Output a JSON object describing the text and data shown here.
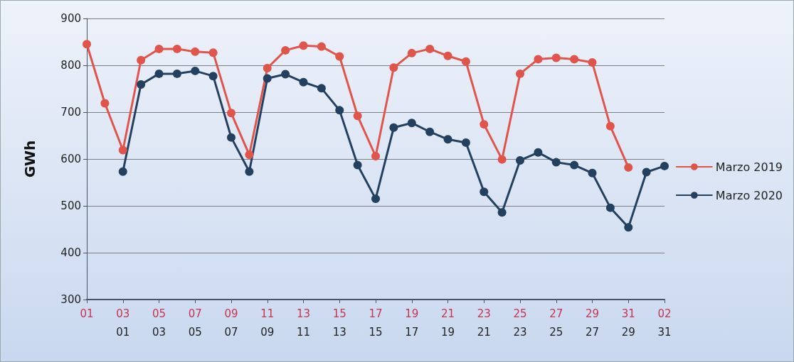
{
  "chart_data": {
    "type": "line",
    "ylabel": "GWh",
    "categories": [
      "01",
      null,
      "03",
      null,
      "05",
      null,
      "07",
      null,
      "09",
      null,
      "11",
      null,
      "13",
      null,
      "15",
      null,
      "17",
      null,
      "19",
      null,
      "21",
      null,
      "23",
      null,
      "25",
      null,
      "27",
      null,
      "29",
      null,
      "31",
      null,
      "02"
    ],
    "series": [
      {
        "name": "Marzo 2019",
        "color": "#e0554b",
        "values": [
          845,
          719,
          619,
          811,
          835,
          835,
          829,
          827,
          698,
          609,
          794,
          832,
          842,
          840,
          819,
          692,
          606,
          795,
          826,
          835,
          820,
          808,
          674,
          599,
          782,
          813,
          816,
          813,
          806,
          670,
          582,
          null,
          null
        ]
      },
      {
        "name": "Marzo 2020",
        "color": "#24405f",
        "values": [
          null,
          null,
          573,
          759,
          782,
          782,
          788,
          777,
          646,
          573,
          772,
          781,
          764,
          751,
          704,
          587,
          515,
          667,
          677,
          658,
          642,
          635,
          530,
          486,
          597,
          614,
          593,
          587,
          570,
          496,
          454,
          572,
          585
        ]
      }
    ],
    "x2lim": [
      -1,
      31
    ],
    "x2ticks": [
      {
        "value": 1,
        "label": "01"
      },
      {
        "value": 3,
        "label": "03"
      },
      {
        "value": 5,
        "label": "05"
      },
      {
        "value": 7,
        "label": "07"
      },
      {
        "value": 9,
        "label": "09"
      },
      11,
      13,
      15,
      17,
      19,
      21,
      23,
      25,
      27,
      29,
      31
    ],
    "ylim": [
      300,
      900
    ],
    "yticks": [
      300,
      400,
      500,
      600,
      700,
      800,
      900
    ],
    "grid": "y",
    "legend": "right",
    "marker": "circle",
    "line_style": "solid"
  }
}
